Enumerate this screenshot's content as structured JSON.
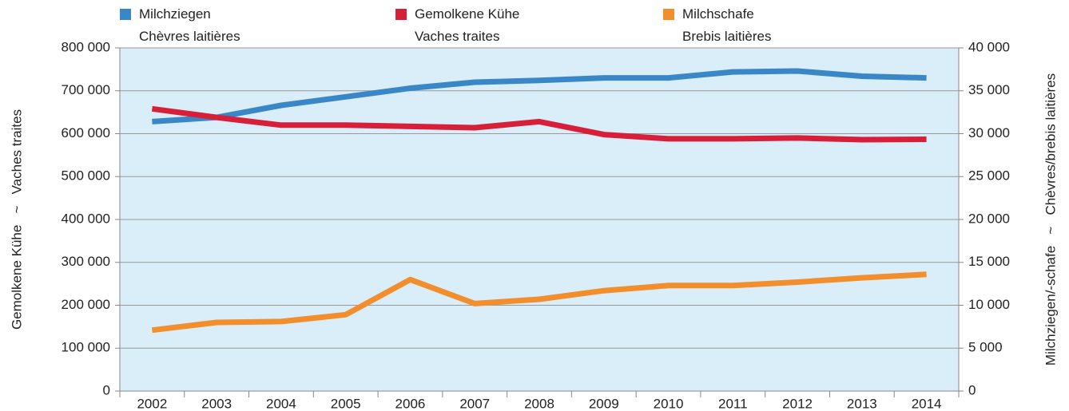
{
  "chart_data": {
    "type": "line",
    "categories": [
      "2002",
      "2003",
      "2004",
      "2005",
      "2006",
      "2007",
      "2008",
      "2009",
      "2010",
      "2011",
      "2012",
      "2013",
      "2014"
    ],
    "series": [
      {
        "name": "Milchziegen\nChèvres laitières",
        "color": "#3a87c8",
        "axis": "y2",
        "values": [
          31400,
          31900,
          33300,
          34300,
          35300,
          36000,
          36200,
          36500,
          36500,
          37200,
          37300,
          36700,
          36500
        ]
      },
      {
        "name": "Gemolkene Kühe\nVaches traites",
        "color": "#d81f3a",
        "axis": "y",
        "values": [
          658000,
          638000,
          620000,
          620000,
          617000,
          614000,
          628000,
          598000,
          588000,
          588000,
          590000,
          586000,
          587000
        ]
      },
      {
        "name": "Milchschafe\nBrebis laitières",
        "color": "#f28e2b",
        "axis": "y2",
        "values": [
          7100,
          8000,
          8100,
          8900,
          13000,
          10200,
          10700,
          11700,
          12300,
          12300,
          12700,
          13200,
          13600
        ]
      }
    ],
    "ylabel": "Gemolkene Kühe   ~   Vaches traites",
    "y2label": "Milchziegen/-schafe   ~   Chèvres/brebis laitières",
    "ylim": [
      0,
      800000
    ],
    "yticks": [
      0,
      {
        "value": 100000,
        "label": "100 000"
      },
      {
        "value": 200000,
        "label": "200 000"
      },
      {
        "value": 300000,
        "label": "300 000"
      },
      {
        "value": 400000,
        "label": "400 000"
      },
      {
        "value": 500000,
        "label": "500 000"
      },
      {
        "value": 600000,
        "label": "600 000"
      },
      {
        "value": 700000,
        "label": "700 000"
      },
      {
        "value": 800000,
        "label": "800 000"
      }
    ],
    "y2lim": [
      0,
      40000
    ],
    "y2ticks": [
      0,
      {
        "value": 5000,
        "label": "5 000"
      },
      {
        "value": 10000,
        "label": "10 000"
      },
      {
        "value": 15000,
        "label": "15 000"
      },
      {
        "value": 20000,
        "label": "20 000"
      },
      {
        "value": 25000,
        "label": "25 000"
      },
      {
        "value": 30000,
        "label": "30 000"
      },
      {
        "value": 35000,
        "label": "35 000"
      },
      {
        "value": 40000,
        "label": "40 000"
      }
    ],
    "grid": true
  }
}
